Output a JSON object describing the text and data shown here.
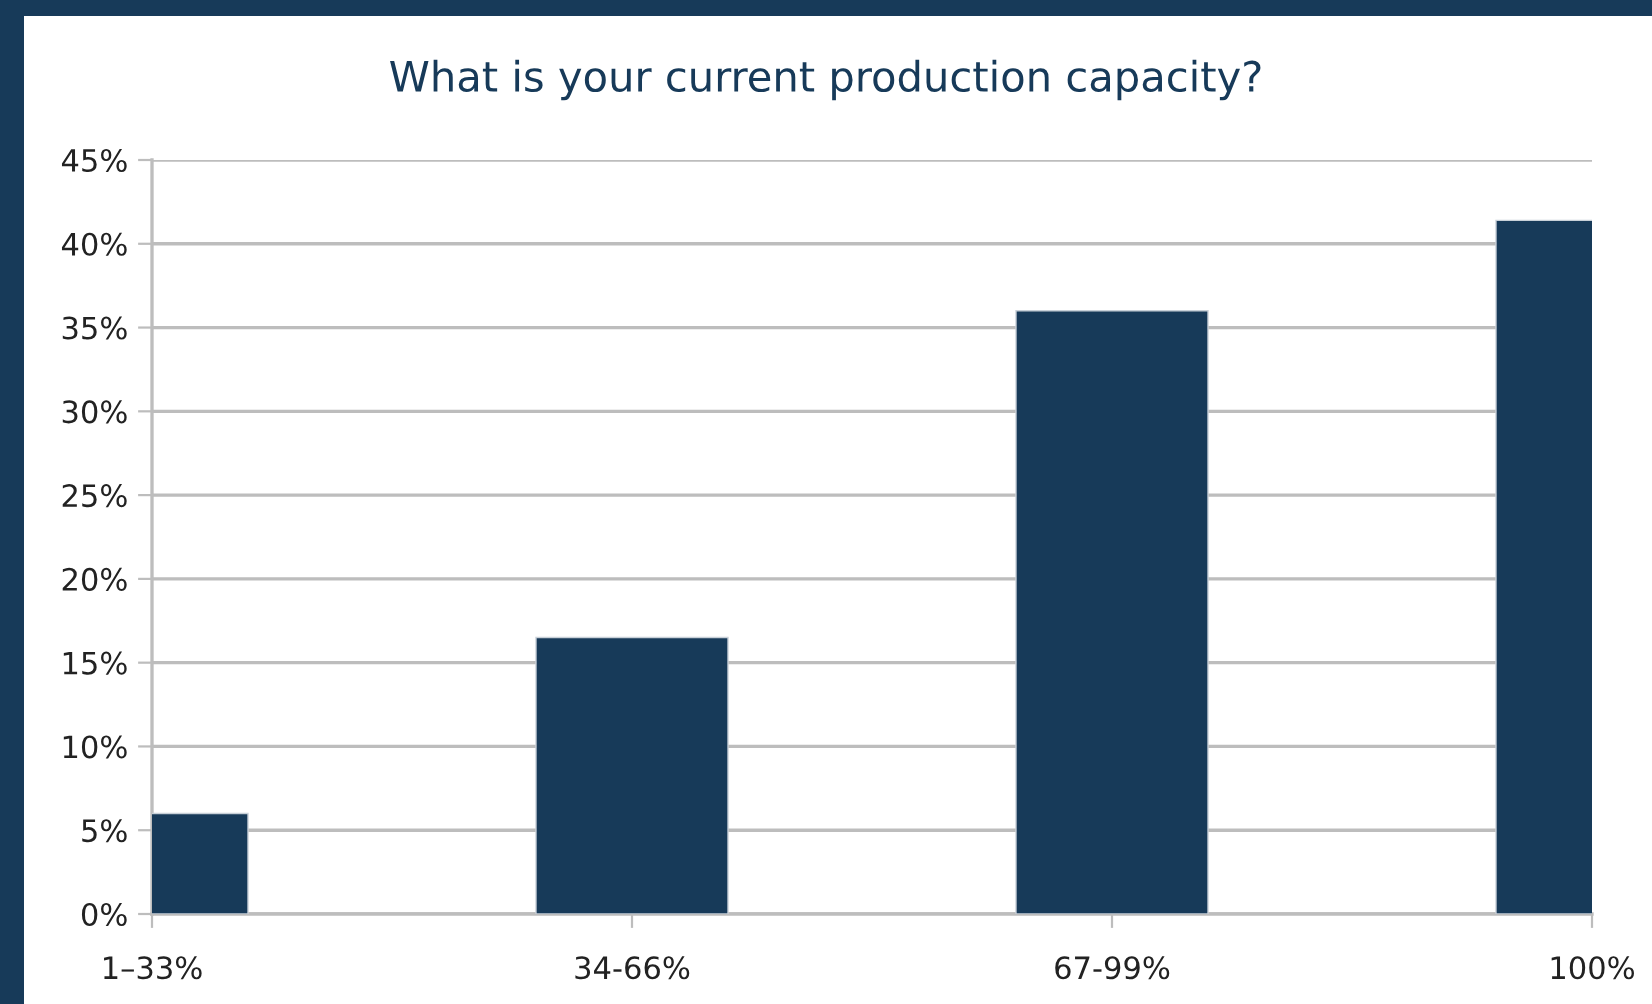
{
  "chart_data": {
    "type": "bar",
    "title": "What is your current production capacity?",
    "categories": [
      "1–33%",
      "34-66%",
      "67-99%",
      "100%"
    ],
    "values": [
      6,
      16.5,
      36,
      41.4
    ],
    "color": "#173a59",
    "ylim": [
      0,
      45
    ],
    "yticks": [
      {
        "value": 0,
        "label": "0%"
      },
      {
        "value": 5,
        "label": "5%"
      },
      {
        "value": 10,
        "label": "10%"
      },
      {
        "value": 15,
        "label": "15%"
      },
      {
        "value": 20,
        "label": "20%"
      },
      {
        "value": 25,
        "label": "25%"
      },
      {
        "value": 30,
        "label": "30%"
      },
      {
        "value": 35,
        "label": "35%"
      },
      {
        "value": 40,
        "label": "40%"
      },
      {
        "value": 45,
        "label": "45%"
      }
    ],
    "grid": "y"
  }
}
